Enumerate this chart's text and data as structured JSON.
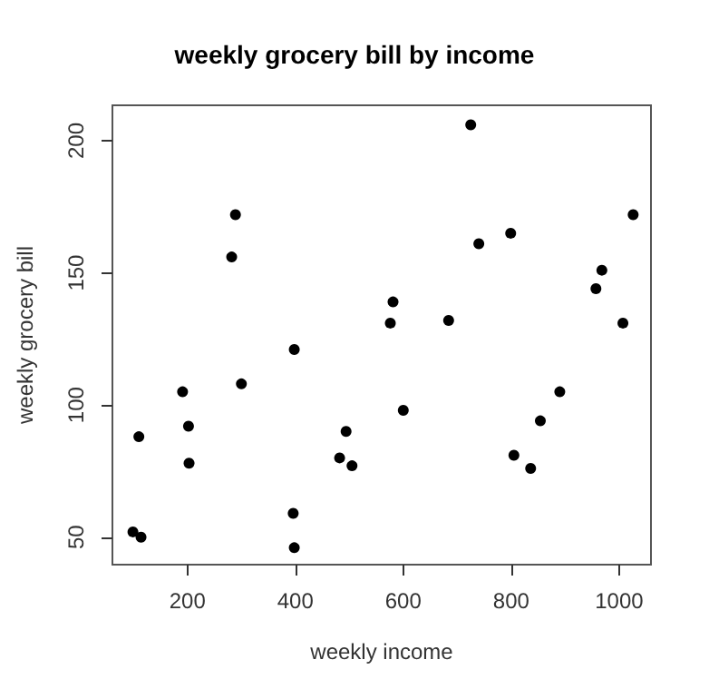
{
  "chart_data": {
    "type": "scatter",
    "title": "weekly grocery bill by income",
    "xlabel": "weekly income",
    "ylabel": "weekly grocery bill",
    "x": [
      289,
      282,
      581,
      576,
      398,
      300,
      191,
      600,
      110,
      202,
      494,
      203,
      482,
      505,
      396,
      398,
      99,
      114,
      725,
      1026,
      799,
      740,
      968,
      957,
      684,
      1007,
      890,
      854,
      805,
      836
    ],
    "values": [
      172,
      156,
      139,
      131,
      121,
      108,
      105,
      98,
      88,
      92,
      90,
      78,
      80,
      77,
      59,
      46,
      52,
      50,
      206,
      172,
      165,
      161,
      151,
      144,
      132,
      131,
      105,
      94,
      81,
      76
    ],
    "color": "#000000",
    "marker": "circle",
    "grid": false,
    "xlim": [
      61,
      1059
    ],
    "xticks": [
      200,
      400,
      600,
      800,
      1000
    ],
    "ylim": [
      39.6,
      213.4
    ],
    "yticks": [
      50,
      100,
      150,
      200
    ]
  }
}
